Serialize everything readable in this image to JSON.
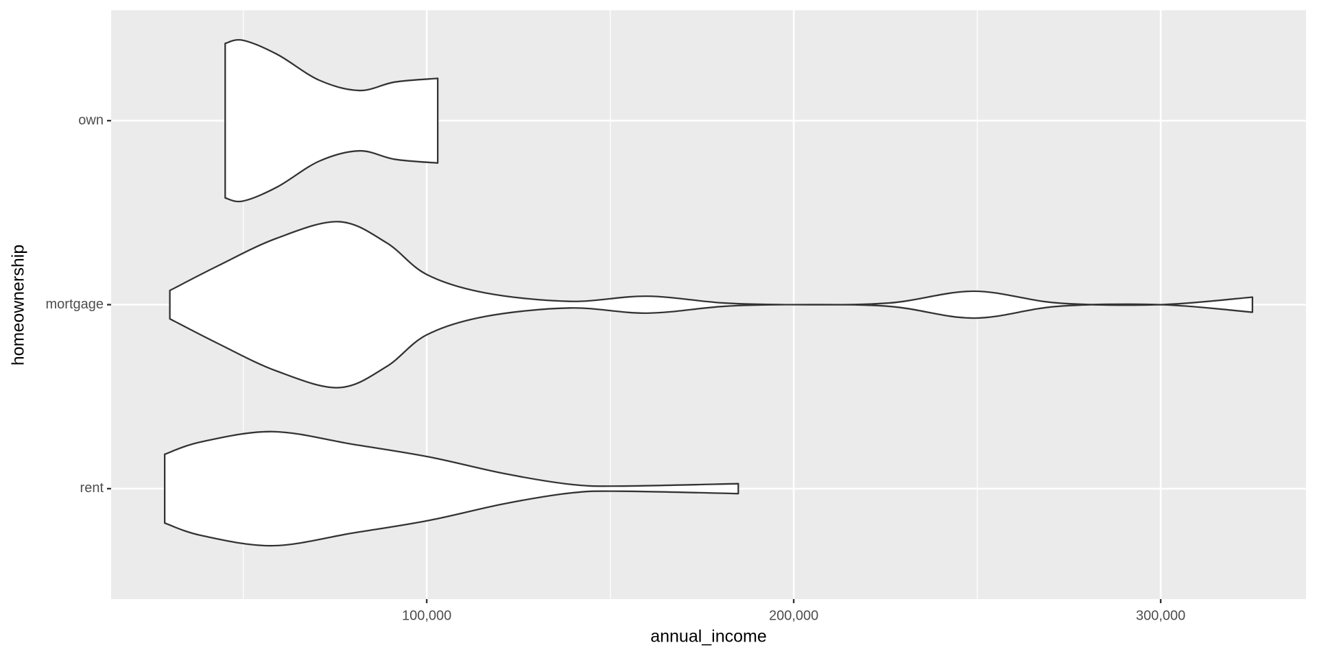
{
  "chart_data": {
    "type": "violin",
    "x_label": "annual_income",
    "y_label": "homeownership",
    "categories": [
      "own",
      "mortgage",
      "rent"
    ],
    "violins": [
      {
        "x": [
          45080,
          49900,
          59300,
          70700,
          81700,
          91300,
          103000
        ],
        "density": [
          0.42,
          0.437,
          0.36,
          0.22,
          0.164,
          0.21,
          0.23
        ]
      },
      {
        "x": [
          30000,
          43000,
          59000,
          76000,
          89000,
          100000,
          116000,
          139000,
          160000,
          181000,
          200000,
          226000,
          249000,
          272000,
          300000,
          325000
        ],
        "density": [
          0.077,
          0.21,
          0.36,
          0.451,
          0.337,
          0.164,
          0.064,
          0.018,
          0.046,
          0.009,
          0,
          0.009,
          0.073,
          0.009,
          0,
          0.041
        ]
      },
      {
        "x": [
          28600,
          38700,
          58100,
          79900,
          100500,
          121100,
          139400,
          153100,
          184900
        ],
        "density": [
          0.187,
          0.255,
          0.31,
          0.241,
          0.173,
          0.082,
          0.023,
          0.014,
          0.027
        ]
      }
    ],
    "fill": "#ffffff",
    "outline": "#333333",
    "xlim": [
      14000,
      339600
    ],
    "xticks": [
      {
        "value": 100000,
        "label": "100,000"
      },
      {
        "value": 200000,
        "label": "200,000"
      },
      {
        "value": 300000,
        "label": "300,000"
      }
    ],
    "xminor": [
      50000,
      150000,
      250000
    ],
    "grid": true
  }
}
